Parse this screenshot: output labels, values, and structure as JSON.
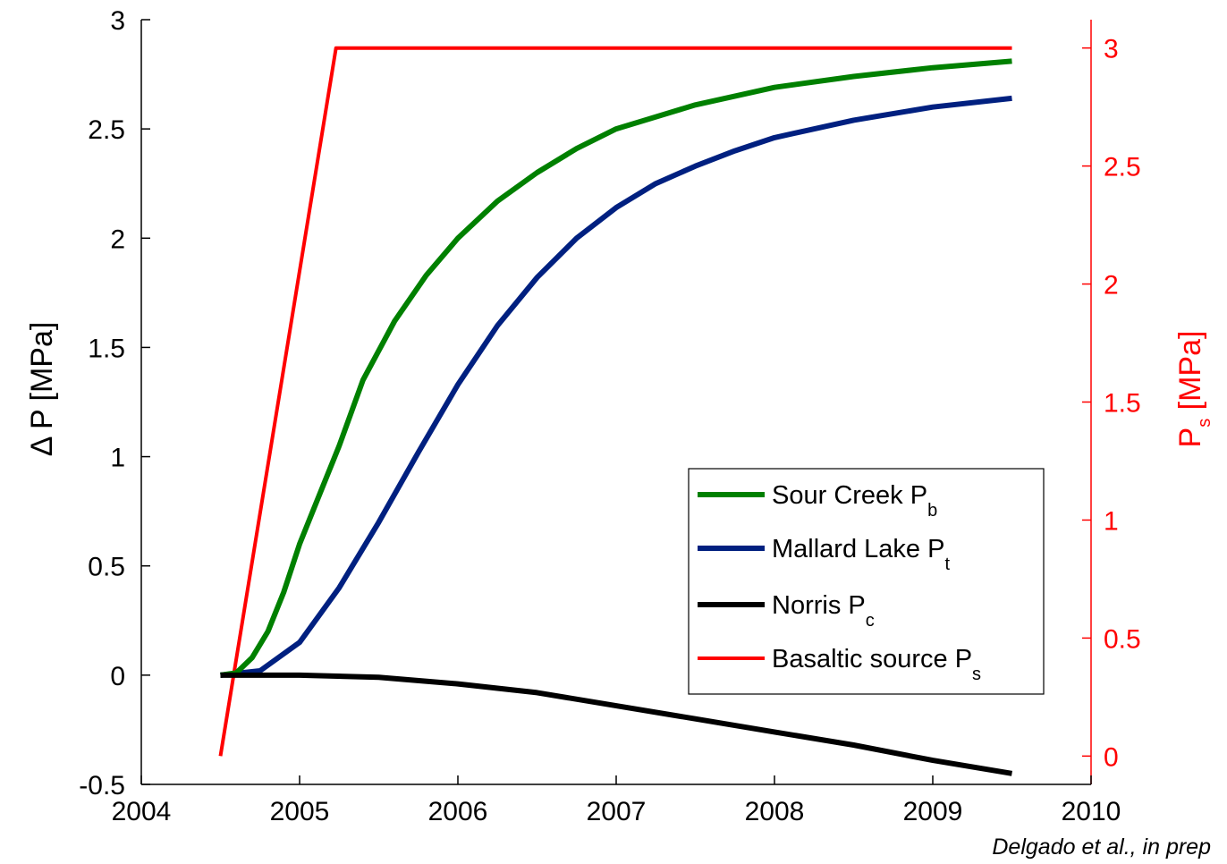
{
  "chart_data": {
    "type": "line",
    "x_ticks": [
      "2004",
      "2005",
      "2006",
      "2007",
      "2008",
      "2009",
      "2010"
    ],
    "xlim": [
      2004,
      2010
    ],
    "y_left": {
      "label": "Δ P [MPa]",
      "ticks": [
        "-0.5",
        "0",
        "0.5",
        "1",
        "1.5",
        "2",
        "2.5",
        "3"
      ],
      "lim": [
        -0.5,
        3
      ]
    },
    "y_right": {
      "label_main": "P",
      "label_sub": "s",
      "label_unit": " [MPa]",
      "ticks": [
        "0",
        "0.5",
        "1",
        "1.5",
        "2",
        "2.5",
        "3"
      ],
      "lim": [
        -0.12,
        3.12
      ],
      "color": "#ff0000"
    },
    "series": [
      {
        "name": "Sour Creek P",
        "sub": "b",
        "axis": "left",
        "color": "#008000",
        "x": [
          2004.5,
          2004.6,
          2004.7,
          2004.8,
          2004.9,
          2005.0,
          2005.1,
          2005.25,
          2005.4,
          2005.6,
          2005.8,
          2006.0,
          2006.25,
          2006.5,
          2006.75,
          2007.0,
          2007.5,
          2008.0,
          2008.5,
          2009.0,
          2009.5
        ],
        "y": [
          0.0,
          0.01,
          0.08,
          0.2,
          0.38,
          0.6,
          0.78,
          1.05,
          1.35,
          1.62,
          1.83,
          2.0,
          2.17,
          2.3,
          2.41,
          2.5,
          2.61,
          2.69,
          2.74,
          2.78,
          2.81
        ]
      },
      {
        "name": "Mallard Lake P",
        "sub": "t",
        "axis": "left",
        "color": "#002080",
        "x": [
          2004.5,
          2004.75,
          2005.0,
          2005.25,
          2005.5,
          2005.75,
          2006.0,
          2006.25,
          2006.5,
          2006.75,
          2007.0,
          2007.25,
          2007.5,
          2007.75,
          2008.0,
          2008.5,
          2009.0,
          2009.5
        ],
        "y": [
          0.0,
          0.02,
          0.15,
          0.4,
          0.7,
          1.02,
          1.33,
          1.6,
          1.82,
          2.0,
          2.14,
          2.25,
          2.33,
          2.4,
          2.46,
          2.54,
          2.6,
          2.64
        ]
      },
      {
        "name": "Norris P",
        "sub": "c",
        "axis": "left",
        "color": "#000000",
        "x": [
          2004.5,
          2005.0,
          2005.5,
          2006.0,
          2006.5,
          2007.0,
          2007.5,
          2008.0,
          2008.5,
          2009.0,
          2009.5
        ],
        "y": [
          0.0,
          0.0,
          -0.01,
          -0.04,
          -0.08,
          -0.14,
          -0.2,
          -0.26,
          -0.32,
          -0.39,
          -0.45
        ]
      },
      {
        "name": "Basaltic source P",
        "sub": "s",
        "axis": "right",
        "color": "#ff0000",
        "x": [
          2004.5,
          2005.23,
          2009.5
        ],
        "y": [
          0.0,
          3.0,
          3.0
        ]
      }
    ],
    "legend_position": "bottom-right",
    "annotation": {
      "text_main": "Delgado et al.",
      "text_rest": ", in prep"
    }
  }
}
